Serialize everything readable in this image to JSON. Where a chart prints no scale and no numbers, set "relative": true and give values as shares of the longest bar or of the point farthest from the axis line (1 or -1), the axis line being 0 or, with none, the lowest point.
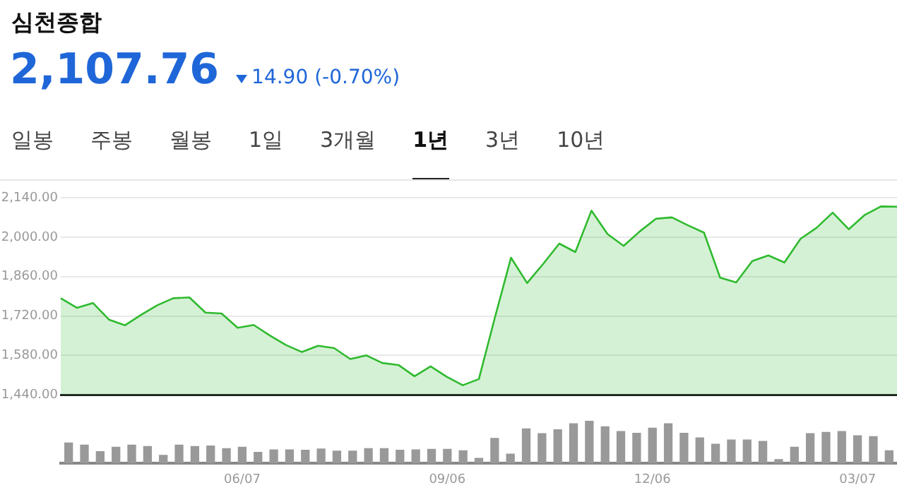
{
  "chart_data": [
    {
      "type": "area",
      "title": "심천종합",
      "subtitle": "2,107.76",
      "annotations": [
        "14.90 (-0.70%)",
        "일봉",
        "주봉",
        "월봉",
        "1일",
        "3개월",
        "1년",
        "3년",
        "10년"
      ],
      "categories": [
        null,
        null,
        null,
        null,
        null,
        null,
        null,
        null,
        null,
        null,
        null,
        null,
        null,
        null,
        null,
        null,
        null,
        null,
        null,
        null,
        null,
        null,
        null,
        null,
        null,
        null,
        null,
        null,
        null,
        null,
        null,
        null,
        null,
        null,
        null,
        null,
        null,
        null,
        null,
        null,
        null,
        null,
        null,
        null,
        null,
        null,
        null,
        null,
        null,
        null,
        null,
        null,
        null
      ],
      "series": [
        {
          "color": "#2fba2f",
          "values": [
            1783,
            1749,
            1766,
            1707,
            1687,
            1724,
            1758,
            1783,
            1786,
            1732,
            1729,
            1678,
            1688,
            1651,
            1617,
            1592,
            1614,
            1606,
            1567,
            1580,
            1553,
            1546,
            1506,
            1541,
            1504,
            1474,
            1496,
            1715,
            1927,
            1837,
            1905,
            1977,
            1947,
            2094,
            2011,
            1969,
            2020,
            2065,
            2070,
            2042,
            2016,
            1856,
            1839,
            1915,
            1935,
            1910,
            1994,
            2033,
            2087,
            2028,
            2079,
            2109,
            2108
          ]
        }
      ],
      "ylim": [
        1440,
        2140
      ],
      "yticks": [
        {
          "value": 1440,
          "label": "1,440.00"
        },
        {
          "value": 1580,
          "label": "1,580.00"
        },
        {
          "value": 1720,
          "label": "1,720.00"
        },
        {
          "value": 1860,
          "label": "1,860.00"
        },
        {
          "value": 2000,
          "label": "2,000.00"
        },
        {
          "value": 2140,
          "label": "2,140.00"
        }
      ],
      "grid": "y",
      "tick_labels": "y"
    },
    {
      "type": "bar",
      "relative": true,
      "categories": [
        null,
        null,
        null,
        null,
        null,
        null,
        null,
        null,
        null,
        null,
        null,
        "06/07",
        null,
        null,
        null,
        null,
        null,
        null,
        null,
        null,
        null,
        null,
        null,
        null,
        "09/06",
        null,
        null,
        null,
        null,
        null,
        null,
        null,
        null,
        null,
        null,
        null,
        null,
        "12/06",
        null,
        null,
        null,
        null,
        null,
        null,
        null,
        null,
        null,
        null,
        null,
        null,
        "03/07",
        null,
        null
      ],
      "series": [
        {
          "color": "#999999",
          "values": [
            0.49,
            0.44,
            0.29,
            0.39,
            0.44,
            0.41,
            0.2,
            0.44,
            0.41,
            0.42,
            0.36,
            0.39,
            0.27,
            0.33,
            0.33,
            0.32,
            0.35,
            0.3,
            0.3,
            0.36,
            0.36,
            0.32,
            0.33,
            0.34,
            0.34,
            0.31,
            0.13,
            0.6,
            0.23,
            0.82,
            0.71,
            0.8,
            0.94,
            1,
            0.87,
            0.76,
            0.72,
            0.84,
            0.94,
            0.72,
            0.61,
            0.46,
            0.56,
            0.56,
            0.53,
            0.1,
            0.39,
            0.71,
            0.74,
            0.76,
            0.66,
            0.64,
            0.31
          ]
        }
      ],
      "tick_labels": "x"
    }
  ]
}
